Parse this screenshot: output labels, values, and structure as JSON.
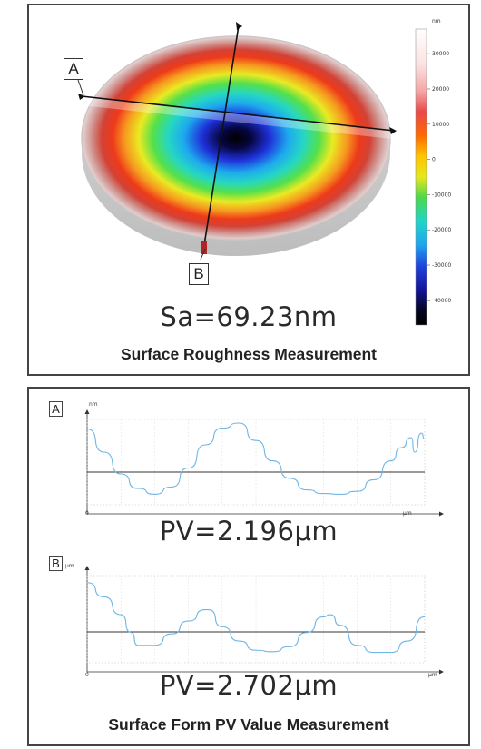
{
  "roughness_panel": {
    "label_a": "A",
    "label_b": "B",
    "sa_value": "Sa=69.23nm",
    "caption": "Surface Roughness Measurement",
    "colorbar": {
      "unit": "nm",
      "ticks": [
        "30000",
        "20000",
        "10000",
        "0",
        "-10000",
        "-20000",
        "-30000",
        "-40000"
      ],
      "tick_values": [
        30000,
        20000,
        10000,
        0,
        -10000,
        -20000,
        -30000,
        -40000
      ],
      "range": [
        -47000,
        37000
      ]
    }
  },
  "form_panel": {
    "caption": "Surface Form PV Value Measurement",
    "profile_a": {
      "label": "A",
      "y_unit": "nm",
      "x_unit": "μm",
      "x_origin": "0",
      "pv_text": "PV=2.196μm"
    },
    "profile_b": {
      "label": "B",
      "y_unit": "μm",
      "x_unit": "μm",
      "x_origin": "0",
      "pv_text": "PV=2.702μm"
    }
  },
  "chart_data": [
    {
      "type": "line",
      "name": "profile-a",
      "x": [
        0,
        0.05,
        0.1,
        0.15,
        0.2,
        0.25,
        0.3,
        0.35,
        0.4,
        0.45,
        0.5,
        0.55,
        0.6,
        0.65,
        0.7,
        0.75,
        0.8,
        0.85,
        0.9,
        0.93,
        0.96,
        0.97,
        0.99,
        1.0
      ],
      "series": [
        {
          "values": [
            0.92,
            0.6,
            0.3,
            0.1,
            0.02,
            0.12,
            0.38,
            0.7,
            0.93,
            1.0,
            0.76,
            0.48,
            0.24,
            0.08,
            0.03,
            0.02,
            0.06,
            0.22,
            0.48,
            0.66,
            0.8,
            0.6,
            0.86,
            0.78
          ]
        }
      ],
      "xlabel": "μm",
      "ylabel": "nm",
      "ylim": [
        -0.1,
        1.1
      ]
    },
    {
      "type": "line",
      "name": "profile-b",
      "x": [
        0,
        0.05,
        0.1,
        0.13,
        0.15,
        0.2,
        0.25,
        0.3,
        0.35,
        0.36,
        0.4,
        0.45,
        0.5,
        0.55,
        0.6,
        0.65,
        0.7,
        0.72,
        0.75,
        0.8,
        0.85,
        0.9,
        0.95,
        1.0
      ],
      "series": [
        {
          "values": [
            1.0,
            0.8,
            0.55,
            0.3,
            0.12,
            0.12,
            0.28,
            0.46,
            0.62,
            0.62,
            0.38,
            0.18,
            0.05,
            0.03,
            0.1,
            0.3,
            0.52,
            0.55,
            0.4,
            0.12,
            0.02,
            0.02,
            0.18,
            0.52
          ]
        }
      ],
      "xlabel": "μm",
      "ylabel": "μm",
      "ylim": [
        -0.1,
        1.15
      ]
    }
  ]
}
